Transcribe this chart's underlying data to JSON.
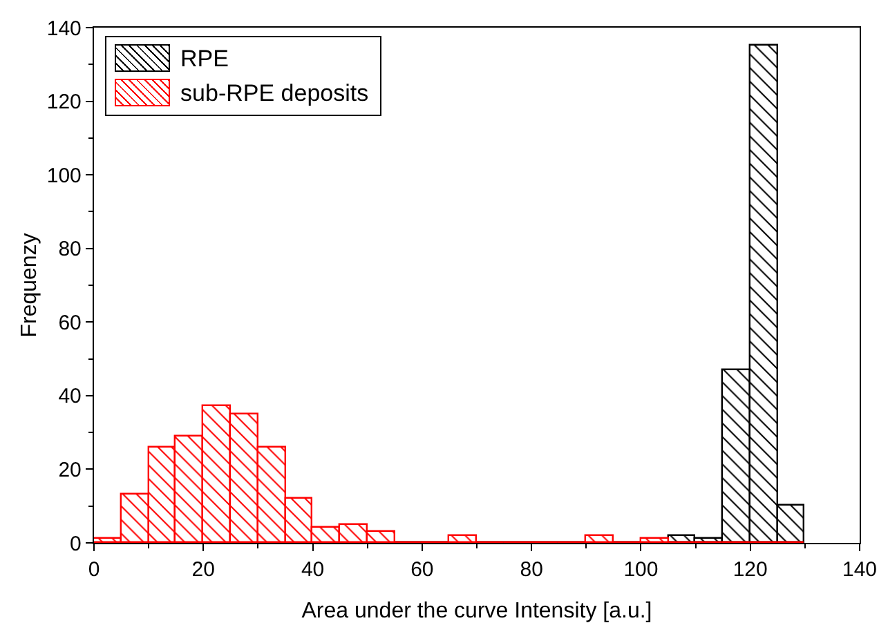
{
  "chart_data": {
    "type": "histogram",
    "xlabel": "Area under the curve Intensity [a.u.]",
    "ylabel": "Frequenzy",
    "bins": [
      0,
      5,
      10,
      15,
      20,
      25,
      30,
      35,
      40,
      45,
      50,
      55,
      60,
      65,
      70,
      75,
      80,
      85,
      90,
      95,
      100,
      105,
      110,
      115,
      120,
      125,
      130
    ],
    "series": [
      {
        "name": "RPE",
        "color": "#000000",
        "values": [
          0,
          0,
          0,
          0,
          0,
          0,
          0,
          0,
          0,
          0,
          0,
          0,
          0,
          0,
          0,
          0,
          0,
          0,
          0,
          0,
          0,
          2,
          1,
          47,
          135,
          10
        ]
      },
      {
        "name": "sub-RPE deposits",
        "color": "#ff0000",
        "values": [
          1,
          13,
          26,
          29,
          37,
          35,
          26,
          12,
          4,
          5,
          3,
          0,
          0,
          2,
          0,
          0,
          0,
          0,
          2,
          0,
          1,
          0,
          0,
          0,
          0,
          0
        ]
      }
    ],
    "xlim": [
      0,
      140
    ],
    "xticks": [
      0,
      20,
      40,
      60,
      80,
      100,
      120,
      140
    ],
    "ylim": [
      0,
      140
    ],
    "yticks": [
      0,
      20,
      40,
      60,
      80,
      100,
      120,
      140
    ],
    "grid": false,
    "legend": "top left"
  }
}
